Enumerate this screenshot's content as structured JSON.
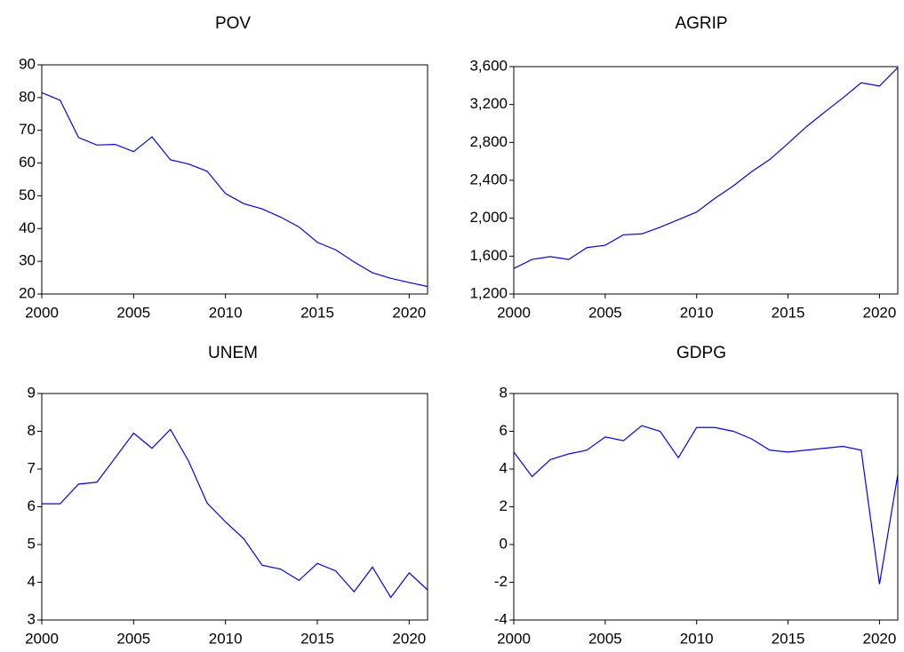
{
  "chart_data": [
    {
      "type": "line",
      "title": "POV",
      "color": "#0000ff",
      "x": [
        2000,
        2001,
        2002,
        2003,
        2004,
        2005,
        2006,
        2007,
        2008,
        2009,
        2010,
        2011,
        2012,
        2013,
        2014,
        2015,
        2016,
        2017,
        2018,
        2019,
        2020,
        2021
      ],
      "values": [
        81.5,
        79.2,
        67.8,
        65.5,
        65.7,
        63.5,
        68,
        61,
        59.7,
        57.5,
        50.7,
        47.6,
        46,
        43.5,
        40.5,
        35.8,
        33.5,
        29.8,
        26.5,
        24.8,
        23.5,
        22.3
      ],
      "xlim": [
        2000,
        2021
      ],
      "xticks": [
        2000,
        2005,
        2010,
        2015,
        2020
      ],
      "ylim": [
        20,
        90
      ],
      "yticks": [
        20,
        30,
        40,
        50,
        60,
        70,
        80,
        90
      ]
    },
    {
      "type": "line",
      "title": "AGRIP",
      "color": "#0000ff",
      "x": [
        2000,
        2001,
        2002,
        2003,
        2004,
        2005,
        2006,
        2007,
        2008,
        2009,
        2010,
        2011,
        2012,
        2013,
        2014,
        2015,
        2016,
        2017,
        2018,
        2019,
        2020,
        2021
      ],
      "values": [
        1470,
        1565,
        1595,
        1565,
        1690,
        1715,
        1825,
        1835,
        1905,
        1985,
        2065,
        2210,
        2340,
        2490,
        2620,
        2790,
        2965,
        3120,
        3270,
        3430,
        3395,
        3590
      ],
      "xlim": [
        2000,
        2021
      ],
      "xticks": [
        2000,
        2005,
        2010,
        2015,
        2020
      ],
      "ylim": [
        1200,
        3600
      ],
      "yticks": [
        {
          "value": 1200,
          "label": "1,200"
        },
        {
          "value": 1600,
          "label": "1,600"
        },
        {
          "value": 2000,
          "label": "2,000"
        },
        {
          "value": 2400,
          "label": "2,400"
        },
        {
          "value": 2800,
          "label": "2,800"
        },
        {
          "value": 3200,
          "label": "3,200"
        },
        {
          "value": 3600,
          "label": "3,600"
        }
      ]
    },
    {
      "type": "line",
      "title": "UNEM",
      "color": "#0000ff",
      "x": [
        2000,
        2001,
        2002,
        2003,
        2004,
        2005,
        2006,
        2007,
        2008,
        2009,
        2010,
        2011,
        2012,
        2013,
        2014,
        2015,
        2016,
        2017,
        2018,
        2019,
        2020,
        2021
      ],
      "values": [
        6.08,
        6.08,
        6.6,
        6.65,
        7.3,
        7.95,
        7.55,
        8.05,
        7.2,
        6.1,
        5.6,
        5.15,
        4.45,
        4.35,
        4.05,
        4.5,
        4.3,
        3.75,
        4.4,
        3.6,
        4.25,
        3.8
      ],
      "xlim": [
        2000,
        2021
      ],
      "xticks": [
        2000,
        2005,
        2010,
        2015,
        2020
      ],
      "ylim": [
        3,
        9
      ],
      "yticks": [
        3,
        4,
        5,
        6,
        7,
        8,
        9
      ]
    },
    {
      "type": "line",
      "title": "GDPG",
      "color": "#0000ff",
      "x": [
        2000,
        2001,
        2002,
        2003,
        2004,
        2005,
        2006,
        2007,
        2008,
        2009,
        2010,
        2011,
        2012,
        2013,
        2014,
        2015,
        2016,
        2017,
        2018,
        2019,
        2020,
        2021
      ],
      "values": [
        4.9,
        3.6,
        4.5,
        4.8,
        5.0,
        5.7,
        5.5,
        6.3,
        6.0,
        4.6,
        6.2,
        6.2,
        6.0,
        5.6,
        5.0,
        4.9,
        5.0,
        5.1,
        5.2,
        5.0,
        -2.1,
        3.7
      ],
      "xlim": [
        2000,
        2021
      ],
      "xticks": [
        2000,
        2005,
        2010,
        2015,
        2020
      ],
      "ylim": [
        -4,
        8
      ],
      "yticks": [
        -4,
        -2,
        0,
        2,
        4,
        6,
        8
      ]
    }
  ]
}
